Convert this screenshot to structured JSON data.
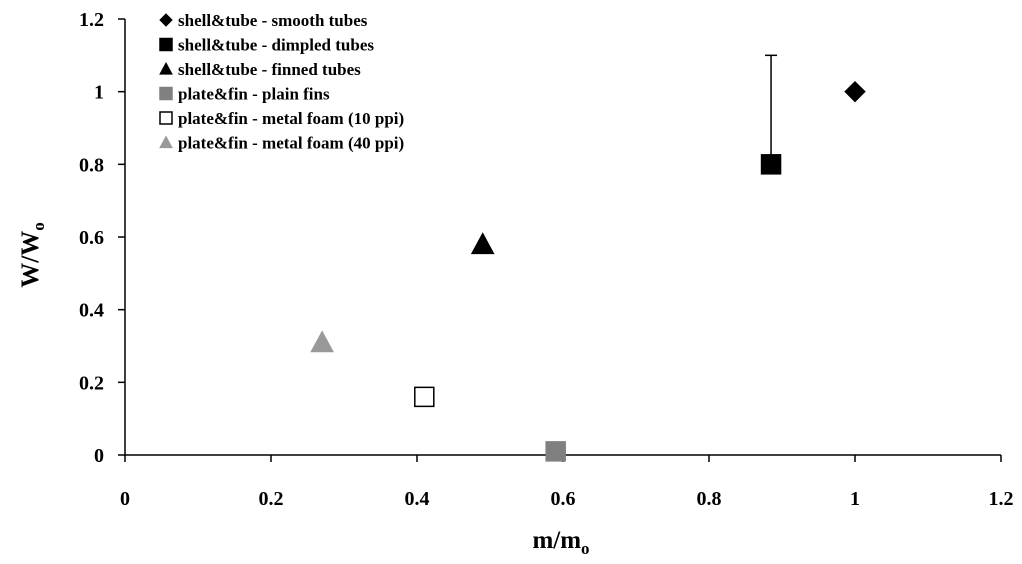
{
  "chart_data": {
    "type": "scatter",
    "title": "",
    "xlabel": {
      "main": "m/m",
      "sub": "o"
    },
    "ylabel": {
      "main": "W/W",
      "sub": "o"
    },
    "xlim": [
      0,
      1.2
    ],
    "ylim": [
      0,
      1.2
    ],
    "x_ticks": [
      "0",
      "0.2",
      "0.4",
      "0.6",
      "0.8",
      "1",
      "1.2"
    ],
    "y_ticks": [
      "0",
      "0.2",
      "0.4",
      "0.6",
      "0.8",
      "1",
      "1.2"
    ],
    "grid": false,
    "legend_position": "top-left",
    "series": [
      {
        "name": "shell&tube - smooth tubes",
        "marker": "diamond",
        "fill": "#000000",
        "stroke": "#000000",
        "points": [
          {
            "x": 1.0,
            "y": 1.0
          }
        ]
      },
      {
        "name": "shell&tube - dimpled tubes",
        "marker": "square",
        "fill": "#000000",
        "stroke": "#000000",
        "points": [
          {
            "x": 0.885,
            "y": 0.8,
            "error_plus": 0.3
          }
        ]
      },
      {
        "name": "shell&tube - finned tubes",
        "marker": "triangle",
        "fill": "#000000",
        "stroke": "#000000",
        "points": [
          {
            "x": 0.49,
            "y": 0.58
          }
        ]
      },
      {
        "name": "plate&fin - plain fins",
        "marker": "square",
        "fill": "#808080",
        "stroke": "#808080",
        "points": [
          {
            "x": 0.59,
            "y": 0.01
          }
        ]
      },
      {
        "name": "plate&fin - metal foam (10 ppi)",
        "marker": "square",
        "fill": "#ffffff",
        "stroke": "#000000",
        "points": [
          {
            "x": 0.41,
            "y": 0.16
          }
        ]
      },
      {
        "name": "plate&fin - metal foam (40 ppi)",
        "marker": "triangle",
        "fill": "#999999",
        "stroke": "#999999",
        "points": [
          {
            "x": 0.27,
            "y": 0.31
          }
        ]
      }
    ]
  }
}
